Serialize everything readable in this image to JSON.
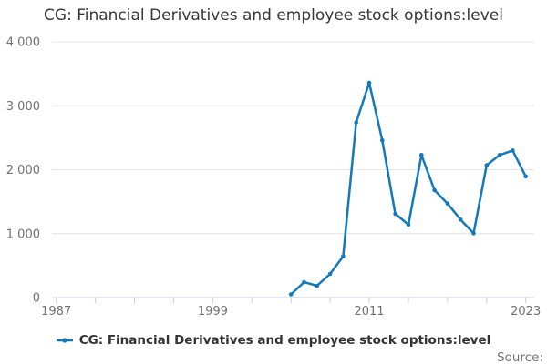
{
  "title": "CG: Financial Derivatives and employee stock options:level",
  "legend": {
    "label": "CG: Financial Derivatives and employee stock options:level",
    "marker_icon": "line-with-dot-icon"
  },
  "source_label": "Source:",
  "colors": {
    "line": "#1279bd",
    "grid": "#e4e4e4",
    "axis": "#c3cee0",
    "title_text": "#363636",
    "tick_text": "#707070",
    "legend_text": "#333333",
    "source_text": "#757575"
  },
  "chart_data": {
    "type": "line",
    "title": "CG: Financial Derivatives and employee stock options:level",
    "x": [
      2005,
      2006,
      2007,
      2008,
      2009,
      2010,
      2011,
      2012,
      2013,
      2014,
      2015,
      2016,
      2017,
      2018,
      2019,
      2020,
      2021,
      2022,
      2023
    ],
    "series": [
      {
        "name": "CG: Financial Derivatives and employee stock options:level",
        "values": [
          50,
          240,
          185,
          370,
          645,
          2740,
          3360,
          2460,
          1310,
          1140,
          2230,
          1680,
          1470,
          1220,
          1005,
          2070,
          2230,
          2300,
          1895
        ]
      }
    ],
    "xlabel": "",
    "ylabel": "",
    "ylim": [
      0,
      4000
    ],
    "xlim": [
      1986.7,
      2023.7
    ],
    "grid": "horizontal",
    "legend_position": "bottom",
    "yticks": [
      {
        "value": 0,
        "label": "0"
      },
      {
        "value": 1000,
        "label": "1 000"
      },
      {
        "value": 2000,
        "label": "2 000"
      },
      {
        "value": 3000,
        "label": "3 000"
      },
      {
        "value": 4000,
        "label": "4 000"
      }
    ],
    "xticks_labeled": [
      {
        "year": 1987,
        "label": "1987"
      },
      {
        "year": 1999,
        "label": "1999"
      },
      {
        "year": 2011,
        "label": "2011"
      },
      {
        "year": 2023,
        "label": "2023"
      }
    ],
    "x_minor_tick_years": [
      1987,
      1990,
      1993,
      1996,
      1999,
      2002,
      2005,
      2008,
      2011,
      2014,
      2017,
      2020,
      2023
    ]
  }
}
